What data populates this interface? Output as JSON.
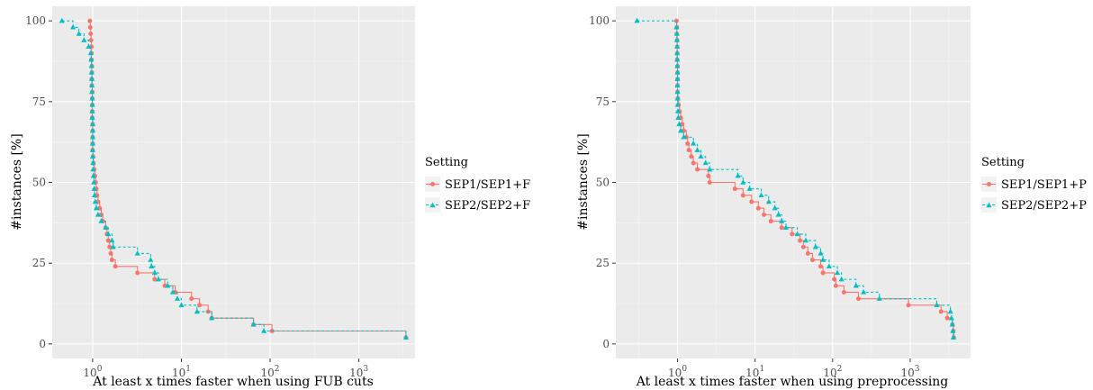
{
  "chart_data": [
    {
      "type": "line",
      "step": true,
      "xscale": "log",
      "xlabel": "At least x times faster when using FUB cuts",
      "ylabel": "#instances [%]",
      "x_tick_labels": [
        "10^0",
        "10^1",
        "10^2",
        "10^3"
      ],
      "y_tick_labels": [
        "0",
        "25",
        "50",
        "75",
        "100"
      ],
      "ylim": [
        0,
        100
      ],
      "xlim": [
        0.35,
        4300
      ],
      "grid": true,
      "legend": {
        "title": "Setting",
        "placement": "right",
        "entries": [
          "SEP1/SEP1+F",
          "SEP2/SEP2+F"
        ]
      },
      "series": [
        {
          "name": "SEP1/SEP1+F",
          "color": "#F8766D",
          "line": "solid",
          "marker": "circle",
          "points": [
            [
              0.93,
              100
            ],
            [
              0.94,
              98
            ],
            [
              0.95,
              96
            ],
            [
              0.96,
              94
            ],
            [
              0.97,
              92
            ],
            [
              0.97,
              90
            ],
            [
              0.97,
              88
            ],
            [
              0.98,
              86
            ],
            [
              0.98,
              84
            ],
            [
              0.98,
              82
            ],
            [
              0.98,
              80
            ],
            [
              0.99,
              78
            ],
            [
              0.99,
              76
            ],
            [
              0.99,
              74
            ],
            [
              0.99,
              72
            ],
            [
              0.99,
              70
            ],
            [
              1.0,
              68
            ],
            [
              1.0,
              66
            ],
            [
              1.0,
              64
            ],
            [
              1.0,
              62
            ],
            [
              1.0,
              60
            ],
            [
              1.01,
              58
            ],
            [
              1.02,
              56
            ],
            [
              1.04,
              54
            ],
            [
              1.06,
              52
            ],
            [
              1.08,
              50
            ],
            [
              1.1,
              48
            ],
            [
              1.12,
              46
            ],
            [
              1.15,
              44
            ],
            [
              1.2,
              42
            ],
            [
              1.25,
              40
            ],
            [
              1.3,
              38
            ],
            [
              1.4,
              36
            ],
            [
              1.45,
              34
            ],
            [
              1.5,
              32
            ],
            [
              1.55,
              30
            ],
            [
              1.6,
              28
            ],
            [
              1.65,
              26
            ],
            [
              1.8,
              24
            ],
            [
              3.2,
              22
            ],
            [
              5.0,
              20
            ],
            [
              6.5,
              18
            ],
            [
              8.5,
              16
            ],
            [
              13,
              14
            ],
            [
              16,
              12
            ],
            [
              20,
              10
            ],
            [
              22,
              8
            ],
            [
              65,
              6
            ],
            [
              105,
              4
            ],
            [
              3400,
              2
            ]
          ]
        },
        {
          "name": "SEP2/SEP2+F",
          "color": "#00BFC4",
          "line": "dashed",
          "marker": "triangle",
          "points": [
            [
              0.45,
              100
            ],
            [
              0.6,
              98
            ],
            [
              0.7,
              96
            ],
            [
              0.8,
              94
            ],
            [
              0.9,
              92
            ],
            [
              0.95,
              90
            ],
            [
              0.96,
              88
            ],
            [
              0.97,
              86
            ],
            [
              0.97,
              84
            ],
            [
              0.98,
              82
            ],
            [
              0.98,
              80
            ],
            [
              0.98,
              78
            ],
            [
              0.99,
              76
            ],
            [
              0.99,
              74
            ],
            [
              0.99,
              72
            ],
            [
              0.99,
              70
            ],
            [
              1.0,
              68
            ],
            [
              1.0,
              66
            ],
            [
              1.0,
              64
            ],
            [
              1.0,
              62
            ],
            [
              1.0,
              60
            ],
            [
              1.0,
              58
            ],
            [
              1.01,
              56
            ],
            [
              1.01,
              54
            ],
            [
              1.02,
              52
            ],
            [
              1.03,
              50
            ],
            [
              1.04,
              48
            ],
            [
              1.05,
              46
            ],
            [
              1.07,
              44
            ],
            [
              1.1,
              42
            ],
            [
              1.15,
              40
            ],
            [
              1.25,
              38
            ],
            [
              1.4,
              36
            ],
            [
              1.5,
              34
            ],
            [
              1.65,
              32
            ],
            [
              1.7,
              30
            ],
            [
              3.2,
              28
            ],
            [
              4.5,
              26
            ],
            [
              4.6,
              24
            ],
            [
              5.0,
              22
            ],
            [
              5.5,
              20
            ],
            [
              7.0,
              18
            ],
            [
              8.0,
              16
            ],
            [
              9.0,
              14
            ],
            [
              10,
              12
            ],
            [
              15,
              10
            ],
            [
              22,
              8
            ],
            [
              65,
              6
            ],
            [
              85,
              4
            ],
            [
              3400,
              2
            ]
          ]
        }
      ]
    },
    {
      "type": "line",
      "step": true,
      "xscale": "log",
      "xlabel": "At least x times faster when using preprocessing",
      "ylabel": "#instances [%]",
      "x_tick_labels": [
        "10^0",
        "10^1",
        "10^2",
        "10^3"
      ],
      "y_tick_labels": [
        "0",
        "25",
        "50",
        "75",
        "100"
      ],
      "ylim": [
        0,
        100
      ],
      "xlim": [
        0.16,
        6000
      ],
      "grid": true,
      "legend": {
        "title": "Setting",
        "placement": "right",
        "entries": [
          "SEP1/SEP1+P",
          "SEP2/SEP2+P"
        ]
      },
      "series": [
        {
          "name": "SEP1/SEP1+P",
          "color": "#F8766D",
          "line": "solid",
          "marker": "circle",
          "points": [
            [
              0.97,
              100
            ],
            [
              0.98,
              98
            ],
            [
              0.98,
              96
            ],
            [
              0.99,
              94
            ],
            [
              0.99,
              92
            ],
            [
              0.99,
              90
            ],
            [
              0.99,
              88
            ],
            [
              1.0,
              86
            ],
            [
              1.0,
              84
            ],
            [
              1.0,
              82
            ],
            [
              1.0,
              80
            ],
            [
              1.0,
              78
            ],
            [
              1.01,
              76
            ],
            [
              1.03,
              74
            ],
            [
              1.06,
              72
            ],
            [
              1.1,
              70
            ],
            [
              1.15,
              68
            ],
            [
              1.2,
              66
            ],
            [
              1.3,
              64
            ],
            [
              1.35,
              62
            ],
            [
              1.4,
              60
            ],
            [
              1.5,
              58
            ],
            [
              1.6,
              56
            ],
            [
              1.8,
              54
            ],
            [
              2.5,
              52
            ],
            [
              2.6,
              50
            ],
            [
              5.5,
              48
            ],
            [
              7.0,
              46
            ],
            [
              9.0,
              44
            ],
            [
              11,
              42
            ],
            [
              13,
              40
            ],
            [
              16,
              38
            ],
            [
              22,
              36
            ],
            [
              30,
              34
            ],
            [
              38,
              32
            ],
            [
              42,
              30
            ],
            [
              48,
              28
            ],
            [
              55,
              26
            ],
            [
              70,
              24
            ],
            [
              75,
              22
            ],
            [
              105,
              20
            ],
            [
              110,
              18
            ],
            [
              140,
              16
            ],
            [
              215,
              14
            ],
            [
              950,
              12
            ],
            [
              2500,
              10
            ],
            [
              3000,
              8
            ],
            [
              3500,
              6
            ],
            [
              3600,
              4
            ],
            [
              3650,
              2
            ]
          ]
        },
        {
          "name": "SEP2/SEP2+P",
          "color": "#00BFC4",
          "line": "dashed",
          "marker": "triangle",
          "points": [
            [
              0.3,
              100
            ],
            [
              0.97,
              98
            ],
            [
              0.98,
              96
            ],
            [
              0.98,
              94
            ],
            [
              0.99,
              92
            ],
            [
              0.99,
              90
            ],
            [
              0.99,
              88
            ],
            [
              0.99,
              86
            ],
            [
              1.0,
              84
            ],
            [
              1.0,
              82
            ],
            [
              1.0,
              80
            ],
            [
              1.0,
              78
            ],
            [
              1.0,
              76
            ],
            [
              1.0,
              74
            ],
            [
              1.01,
              72
            ],
            [
              1.02,
              70
            ],
            [
              1.05,
              68
            ],
            [
              1.1,
              66
            ],
            [
              1.2,
              64
            ],
            [
              1.6,
              62
            ],
            [
              1.8,
              60
            ],
            [
              2.0,
              58
            ],
            [
              2.3,
              56
            ],
            [
              2.6,
              54
            ],
            [
              6.0,
              52
            ],
            [
              7.0,
              50
            ],
            [
              8.5,
              48
            ],
            [
              12,
              46
            ],
            [
              15,
              44
            ],
            [
              18,
              42
            ],
            [
              20,
              40
            ],
            [
              22,
              38
            ],
            [
              25,
              36
            ],
            [
              35,
              34
            ],
            [
              45,
              32
            ],
            [
              60,
              30
            ],
            [
              70,
              28
            ],
            [
              75,
              26
            ],
            [
              90,
              24
            ],
            [
              115,
              22
            ],
            [
              130,
              20
            ],
            [
              200,
              18
            ],
            [
              250,
              16
            ],
            [
              400,
              14
            ],
            [
              2200,
              12
            ],
            [
              3300,
              10
            ],
            [
              3400,
              8
            ],
            [
              3500,
              6
            ],
            [
              3550,
              4
            ],
            [
              3600,
              2
            ]
          ]
        }
      ]
    }
  ]
}
